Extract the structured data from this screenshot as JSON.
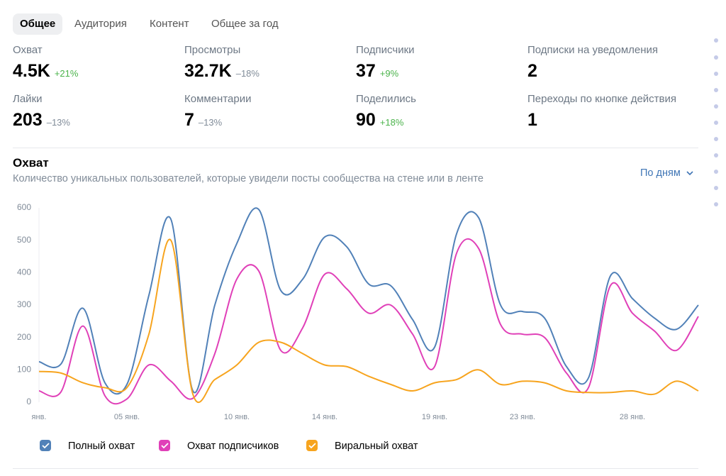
{
  "tabs": [
    "Общее",
    "Аудитория",
    "Контент",
    "Общее за год"
  ],
  "selected_tab": 0,
  "stats": [
    {
      "label": "Охват",
      "value": "4.5K",
      "change": "+21%"
    },
    {
      "label": "Просмотры",
      "value": "32.7K",
      "change": "–18%"
    },
    {
      "label": "Подписчики",
      "value": "37",
      "change": "+9%"
    },
    {
      "label": "Подписки на уведомления",
      "value": "2"
    },
    {
      "label": "Лайки",
      "value": "203",
      "change": "–13%"
    },
    {
      "label": "Комментарии",
      "value": "7",
      "change": "–13%"
    },
    {
      "label": "Поделились",
      "value": "90",
      "change": "+18%"
    },
    {
      "label": "Переходы по кнопке действия",
      "value": "1"
    }
  ],
  "period": "По дням",
  "chart_data": {
    "type": "line",
    "title": "Охват",
    "subtitle": "Количество уникальных пользователей, которые увидели посты сообщества на стене или в ленте",
    "categories": [
      "янв.",
      null,
      null,
      null,
      "05 янв.",
      null,
      null,
      null,
      null,
      "10 янв.",
      null,
      null,
      null,
      "14 янв.",
      null,
      null,
      null,
      null,
      "19 янв.",
      null,
      null,
      null,
      "23 янв.",
      null,
      null,
      null,
      null,
      "28 янв.",
      null,
      null,
      null
    ],
    "series": [
      {
        "name": "Полный охват",
        "color": "#5181b8",
        "values": [
          125,
          118,
          290,
          60,
          55,
          330,
          565,
          35,
          300,
          490,
          595,
          345,
          380,
          510,
          480,
          365,
          360,
          255,
          170,
          520,
          570,
          300,
          280,
          260,
          110,
          75,
          390,
          320,
          260,
          225,
          300
        ]
      },
      {
        "name": "Охват подписчиков",
        "color": "#e040b8",
        "values": [
          35,
          32,
          235,
          20,
          10,
          115,
          65,
          12,
          150,
          380,
          405,
          160,
          230,
          395,
          350,
          275,
          300,
          210,
          110,
          460,
          475,
          240,
          210,
          200,
          90,
          45,
          360,
          275,
          220,
          160,
          265
        ]
      },
      {
        "name": "Виральный охват",
        "color": "#f7a41e",
        "values": [
          95,
          90,
          60,
          45,
          45,
          210,
          500,
          25,
          70,
          115,
          185,
          185,
          150,
          115,
          110,
          80,
          55,
          35,
          60,
          70,
          100,
          55,
          65,
          60,
          35,
          30,
          30,
          35,
          25,
          65,
          35
        ]
      }
    ],
    "ylim": [
      0,
      600
    ],
    "yticks": [
      0,
      100,
      200,
      300,
      400,
      500,
      600
    ],
    "grid": false
  }
}
